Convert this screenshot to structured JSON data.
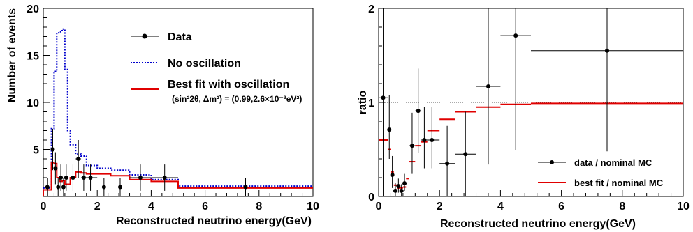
{
  "chart_data": [
    {
      "type": "line",
      "xlabel": "Reconstructed neutrino energy(GeV)",
      "ylabel": "Number of events",
      "xlim": [
        0,
        10
      ],
      "ylim": [
        0,
        20
      ],
      "x_ticks": [
        "0",
        "2",
        "4",
        "6",
        "8",
        "10"
      ],
      "y_ticks": [
        "5",
        "10",
        "15",
        "20"
      ],
      "legend_position": "top-right",
      "series": [
        {
          "name": "Data",
          "style": "points-with-errorbars",
          "color": "#000000",
          "points": [
            {
              "x": 0.15,
              "y": 1,
              "xerr": 0.15,
              "yerr": 1
            },
            {
              "x": 0.35,
              "y": 5,
              "xerr": 0.05,
              "yerr": 2.2
            },
            {
              "x": 0.45,
              "y": 3,
              "xerr": 0.05,
              "yerr": 1.7
            },
            {
              "x": 0.55,
              "y": 1,
              "xerr": 0.05,
              "yerr": 1
            },
            {
              "x": 0.65,
              "y": 2,
              "xerr": 0.05,
              "yerr": 1.4
            },
            {
              "x": 0.75,
              "y": 1,
              "xerr": 0.05,
              "yerr": 1
            },
            {
              "x": 0.85,
              "y": 2,
              "xerr": 0.05,
              "yerr": 1.4
            },
            {
              "x": 1.1,
              "y": 2,
              "xerr": 0.1,
              "yerr": 1.4
            },
            {
              "x": 1.3,
              "y": 4,
              "xerr": 0.1,
              "yerr": 2
            },
            {
              "x": 1.5,
              "y": 2,
              "xerr": 0.1,
              "yerr": 1.4
            },
            {
              "x": 1.75,
              "y": 2,
              "xerr": 0.25,
              "yerr": 1.4
            },
            {
              "x": 2.25,
              "y": 1,
              "xerr": 0.25,
              "yerr": 1
            },
            {
              "x": 2.85,
              "y": 1,
              "xerr": 0.35,
              "yerr": 1
            },
            {
              "x": 3.6,
              "y": 2,
              "xerr": 0.4,
              "yerr": 1.4
            },
            {
              "x": 4.5,
              "y": 2,
              "xerr": 0.5,
              "yerr": 1.4
            },
            {
              "x": 7.5,
              "y": 1,
              "xerr": 2.5,
              "yerr": 1
            }
          ]
        },
        {
          "name": "No oscillation",
          "style": "step-dotted",
          "color": "#0000cc",
          "edges": [
            0,
            0.3,
            0.4,
            0.5,
            0.6,
            0.7,
            0.8,
            0.9,
            1.0,
            1.2,
            1.4,
            1.6,
            2.0,
            2.5,
            3.2,
            4.0,
            5.0,
            10.0
          ],
          "values": [
            0.9,
            7.2,
            13.3,
            17.4,
            17.5,
            17.8,
            13.5,
            7.0,
            5.5,
            4.5,
            4.3,
            3.3,
            3.0,
            2.8,
            2.3,
            1.8,
            1.1
          ]
        },
        {
          "name": "Best fit with oscillation",
          "style": "step-solid",
          "color": "#e00000",
          "edges": [
            0,
            0.3,
            0.4,
            0.5,
            0.6,
            0.7,
            0.8,
            0.9,
            1.0,
            1.2,
            1.4,
            1.6,
            2.0,
            2.5,
            3.2,
            4.0,
            5.0,
            10.0
          ],
          "values": [
            0.7,
            3.6,
            3.5,
            2.0,
            1.6,
            1.7,
            1.3,
            1.3,
            2.0,
            2.6,
            2.5,
            2.4,
            2.4,
            2.2,
            1.8,
            1.6,
            0.9
          ]
        }
      ],
      "legend": {
        "data_label": "Data",
        "noosc_label": "No oscillation",
        "fit_label": "Best fit with oscillation",
        "fit_params_label": "(sin²2θ, Δm²) = (0.99,2.6×10⁻³eV²)"
      },
      "colors": {
        "axis": "#000000",
        "noosc": "#0000cc",
        "fit": "#e00000",
        "data": "#000000"
      }
    },
    {
      "type": "scatter",
      "xlabel": "Reconstructed neutrino energy(GeV)",
      "ylabel": "ratio",
      "xlim": [
        0,
        10
      ],
      "ylim": [
        0,
        2
      ],
      "x_ticks": [
        "0",
        "2",
        "4",
        "6",
        "8",
        "10"
      ],
      "y_ticks": [
        "0",
        "1",
        "2"
      ],
      "reference_line": 1,
      "grid": false,
      "legend_position": "bottom-right",
      "series": [
        {
          "name": "data / nominal MC",
          "style": "points-with-errorbars",
          "color": "#000000",
          "points": [
            {
              "x": 0.15,
              "y": 1.05,
              "xerr": 0.15,
              "yerr_low": 1.05,
              "yerr_high": 1.0
            },
            {
              "x": 0.35,
              "y": 0.71,
              "xerr": 0.05,
              "yerr_low": 0.31,
              "yerr_high": 0.37
            },
            {
              "x": 0.45,
              "y": 0.23,
              "xerr": 0.05,
              "yerr_low": 0.14,
              "yerr_high": 0.2
            },
            {
              "x": 0.55,
              "y": 0.06,
              "xerr": 0.05,
              "yerr_low": 0.06,
              "yerr_high": 0.08
            },
            {
              "x": 0.65,
              "y": 0.11,
              "xerr": 0.05,
              "yerr_low": 0.07,
              "yerr_high": 0.08
            },
            {
              "x": 0.75,
              "y": 0.06,
              "xerr": 0.05,
              "yerr_low": 0.06,
              "yerr_high": 0.07
            },
            {
              "x": 0.85,
              "y": 0.14,
              "xerr": 0.05,
              "yerr_low": 0.08,
              "yerr_high": 0.1
            },
            {
              "x": 1.1,
              "y": 0.54,
              "xerr": 0.1,
              "yerr_low": 0.3,
              "yerr_high": 0.35
            },
            {
              "x": 1.3,
              "y": 0.91,
              "xerr": 0.1,
              "yerr_low": 0.45,
              "yerr_high": 0.45
            },
            {
              "x": 1.5,
              "y": 0.6,
              "xerr": 0.1,
              "yerr_low": 0.3,
              "yerr_high": 0.35
            },
            {
              "x": 1.75,
              "y": 0.6,
              "xerr": 0.25,
              "yerr_low": 0.3,
              "yerr_high": 0.35
            },
            {
              "x": 2.25,
              "y": 0.35,
              "xerr": 0.25,
              "yerr_low": 0.35,
              "yerr_high": 0.4
            },
            {
              "x": 2.85,
              "y": 0.45,
              "xerr": 0.35,
              "yerr_low": 0.45,
              "yerr_high": 0.45
            },
            {
              "x": 3.6,
              "y": 1.17,
              "xerr": 0.4,
              "yerr_low": 0.83,
              "yerr_high": 0.83
            },
            {
              "x": 4.5,
              "y": 1.71,
              "xerr": 0.5,
              "yerr_low": 1.22,
              "yerr_high": 0.29
            },
            {
              "x": 7.5,
              "y": 1.55,
              "xerr": 2.5,
              "yerr_low": 1.07,
              "yerr_high": 0.45
            }
          ]
        },
        {
          "name": "best fit / nominal MC",
          "style": "horizontal-segments",
          "color": "#e00000",
          "edges": [
            0,
            0.3,
            0.4,
            0.5,
            0.6,
            0.7,
            0.8,
            0.9,
            1.0,
            1.2,
            1.4,
            1.6,
            2.0,
            2.5,
            3.2,
            4.0,
            5.0,
            10.0
          ],
          "values": [
            0.6,
            0.5,
            0.26,
            0.12,
            0.09,
            0.09,
            0.1,
            0.19,
            0.37,
            0.54,
            0.58,
            0.7,
            0.82,
            0.9,
            0.95,
            0.98,
            0.99
          ]
        }
      ],
      "legend": {
        "data_label": "data / nominal MC",
        "fit_label": "best fit / nominal MC"
      },
      "colors": {
        "axis": "#000000",
        "fit": "#e00000",
        "data": "#000000",
        "reference": "#555555"
      }
    }
  ]
}
